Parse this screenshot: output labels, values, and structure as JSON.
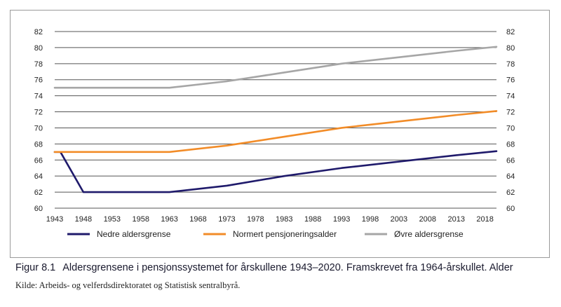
{
  "caption": {
    "figure_number": "Figur 8.1",
    "title": "Aldersgrensene i pensjonssystemet for årskullene 1943–2020. Framskrevet fra 1964-årskullet. Alder"
  },
  "source": "Kilde: Arbeids- og velferdsdirektoratet og Statistisk sentralbyrå.",
  "colors": {
    "nedre": "#1f1a6b",
    "normert": "#f28c28",
    "ovre": "#a6a6a6",
    "grid": "#555555"
  },
  "chart_data": {
    "type": "line",
    "title": "",
    "xlabel": "",
    "ylabel": "",
    "xlim": [
      1943,
      2020
    ],
    "ylim": [
      60,
      82
    ],
    "x_ticks": [
      "1943",
      "1948",
      "1953",
      "1958",
      "1963",
      "1968",
      "1973",
      "1978",
      "1983",
      "1988",
      "1993",
      "1998",
      "2003",
      "2008",
      "2013",
      "2018"
    ],
    "y_ticks": [
      "60",
      "62",
      "64",
      "66",
      "68",
      "70",
      "72",
      "74",
      "76",
      "78",
      "80",
      "82"
    ],
    "grid": true,
    "legend_position": "bottom",
    "series": [
      {
        "name": "Nedre aldersgrense",
        "color": "#1f1a6b",
        "points": [
          [
            1943,
            67
          ],
          [
            1944,
            67
          ],
          [
            1948,
            62
          ],
          [
            1963,
            62
          ],
          [
            1973,
            62.8
          ],
          [
            1983,
            64
          ],
          [
            1993,
            65
          ],
          [
            2003,
            65.8
          ],
          [
            2013,
            66.6
          ],
          [
            2020,
            67.1
          ]
        ]
      },
      {
        "name": "Normert pensjoneringsalder",
        "color": "#f28c28",
        "points": [
          [
            1943,
            67
          ],
          [
            1963,
            67
          ],
          [
            1973,
            67.8
          ],
          [
            1983,
            68.9
          ],
          [
            1993,
            70
          ],
          [
            2003,
            70.8
          ],
          [
            2013,
            71.6
          ],
          [
            2020,
            72.1
          ]
        ]
      },
      {
        "name": "Øvre aldersgrense",
        "color": "#a6a6a6",
        "points": [
          [
            1943,
            75
          ],
          [
            1963,
            75
          ],
          [
            1973,
            75.8
          ],
          [
            1983,
            76.9
          ],
          [
            1993,
            78
          ],
          [
            2003,
            78.8
          ],
          [
            2013,
            79.6
          ],
          [
            2020,
            80.1
          ]
        ]
      }
    ]
  }
}
